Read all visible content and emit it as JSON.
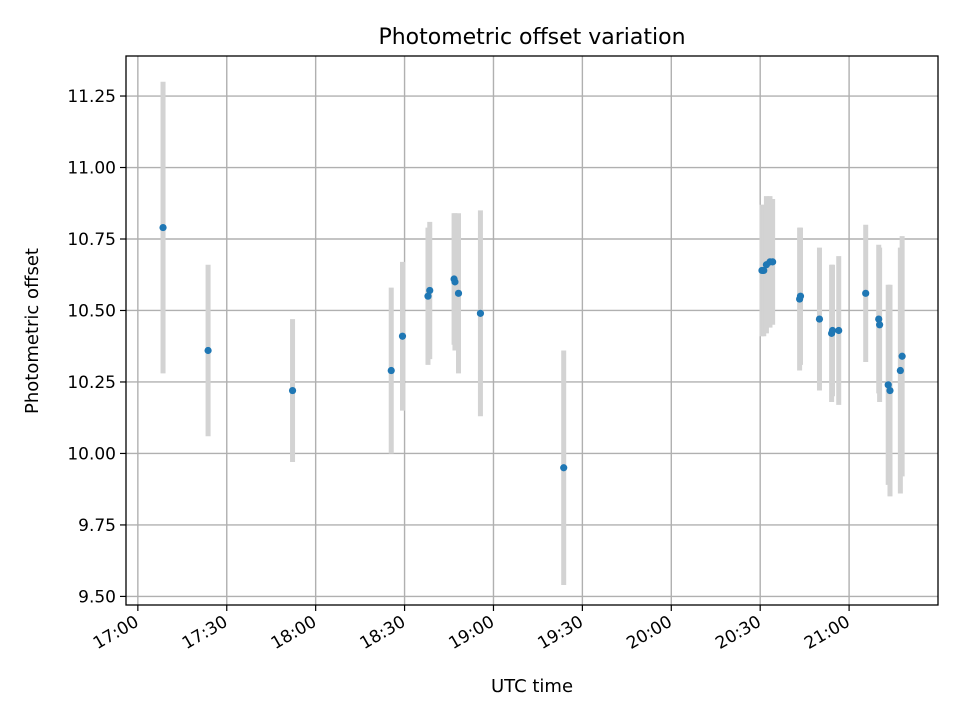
{
  "chart_data": {
    "type": "scatter",
    "title": "Photometric offset variation",
    "xlabel": "UTC time",
    "ylabel": "Photometric offset",
    "x_unit": "UTC time (HH:MM)",
    "xlim": [
      "16:56",
      "21:30"
    ],
    "ylim": [
      9.47,
      11.39
    ],
    "x_ticks": [
      "17:00",
      "17:30",
      "18:00",
      "18:30",
      "19:00",
      "19:30",
      "20:00",
      "20:30",
      "21:00"
    ],
    "y_ticks": [
      "9.50",
      "9.75",
      "10.00",
      "10.25",
      "10.50",
      "10.75",
      "11.00",
      "11.25"
    ],
    "grid": true,
    "colors": {
      "point": "#1f77b4",
      "errorbar": "#d3d3d3",
      "grid": "#b0b0b0"
    },
    "series": [
      {
        "points": [
          {
            "x": "17:08.5",
            "y": 10.79,
            "err": 0.51
          },
          {
            "x": "17:23.7",
            "y": 10.36,
            "err": 0.3
          },
          {
            "x": "17:52.2",
            "y": 10.22,
            "err": 0.25
          },
          {
            "x": "18:25.5",
            "y": 10.29,
            "err": 0.29
          },
          {
            "x": "18:29.3",
            "y": 10.41,
            "err": 0.26
          },
          {
            "x": "18:37.9",
            "y": 10.55,
            "err": 0.24
          },
          {
            "x": "18:38.5",
            "y": 10.57,
            "err": 0.24
          },
          {
            "x": "18:46.7",
            "y": 10.61,
            "err": 0.23
          },
          {
            "x": "18:47.0",
            "y": 10.6,
            "err": 0.24
          },
          {
            "x": "18:48.2",
            "y": 10.56,
            "err": 0.28
          },
          {
            "x": "18:55.6",
            "y": 10.49,
            "err": 0.36
          },
          {
            "x": "19:23.7",
            "y": 9.95,
            "err": 0.41
          },
          {
            "x": "20:30.6",
            "y": 10.64,
            "err": 0.23
          },
          {
            "x": "20:31.2",
            "y": 10.64,
            "err": 0.23
          },
          {
            "x": "20:32.1",
            "y": 10.66,
            "err": 0.24
          },
          {
            "x": "20:33.3",
            "y": 10.67,
            "err": 0.23
          },
          {
            "x": "20:34.2",
            "y": 10.67,
            "err": 0.22
          },
          {
            "x": "20:43.3",
            "y": 10.54,
            "err": 0.25
          },
          {
            "x": "20:43.6",
            "y": 10.55,
            "err": 0.24
          },
          {
            "x": "20:50.0",
            "y": 10.47,
            "err": 0.25
          },
          {
            "x": "20:54.1",
            "y": 10.42,
            "err": 0.24
          },
          {
            "x": "20:54.4",
            "y": 10.43,
            "err": 0.23
          },
          {
            "x": "20:56.5",
            "y": 10.43,
            "err": 0.26
          },
          {
            "x": "21:05.6",
            "y": 10.56,
            "err": 0.24
          },
          {
            "x": "21:10.0",
            "y": 10.47,
            "err": 0.26
          },
          {
            "x": "21:10.3",
            "y": 10.45,
            "err": 0.27
          },
          {
            "x": "21:13.2",
            "y": 10.24,
            "err": 0.35
          },
          {
            "x": "21:13.8",
            "y": 10.22,
            "err": 0.37
          },
          {
            "x": "21:17.3",
            "y": 10.29,
            "err": 0.43
          },
          {
            "x": "21:17.9",
            "y": 10.34,
            "err": 0.42
          }
        ]
      }
    ]
  }
}
